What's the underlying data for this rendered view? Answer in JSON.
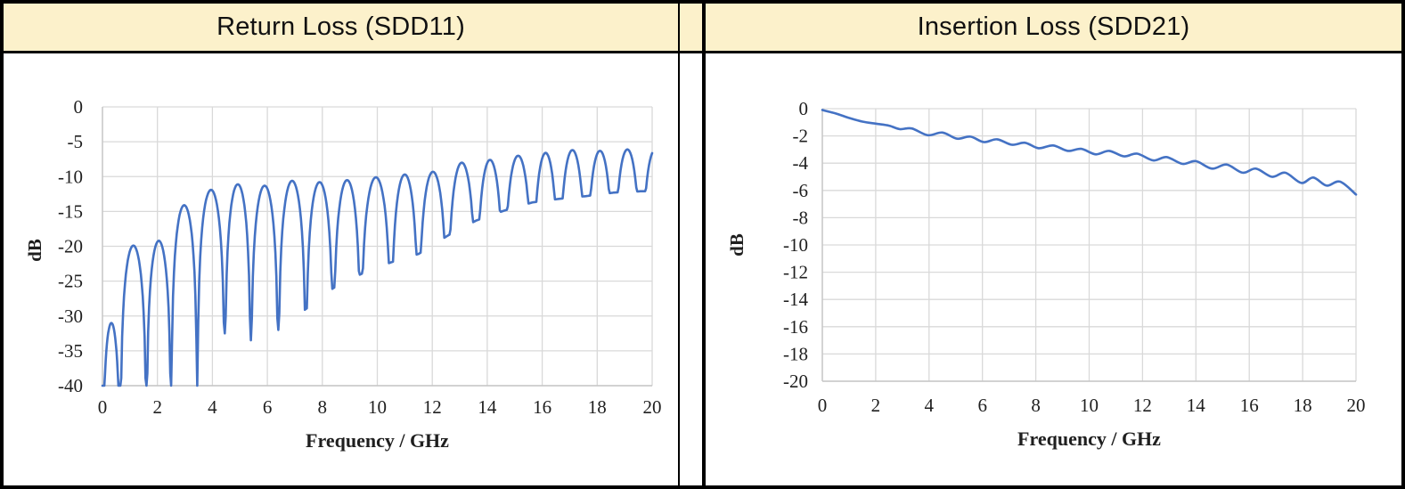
{
  "headers": {
    "left": "Return Loss (SDD11)",
    "right": "Insertion Loss (SDD21)"
  },
  "colors": {
    "line": "#4472C4",
    "grid": "#D9D9D9",
    "axis": "#C6C6C6",
    "header_bg": "#FCF1CB",
    "border": "#000000",
    "text": "#1F1F1F"
  },
  "chart_data": [
    {
      "type": "line",
      "title": "Return Loss (SDD11)",
      "xlabel": "Frequency / GHz",
      "ylabel": "dB",
      "xlim": [
        0,
        20
      ],
      "ylim": [
        -40,
        0
      ],
      "x_ticks": [
        0,
        2,
        4,
        6,
        8,
        10,
        12,
        14,
        16,
        18,
        20
      ],
      "y_ticks": [
        0,
        -5,
        -10,
        -15,
        -20,
        -25,
        -30,
        -35,
        -40
      ],
      "grid": true,
      "legend": "none",
      "series_form": "lobed",
      "lobe_peaks": [
        [
          0.3,
          -31
        ],
        [
          1.15,
          -19.9
        ],
        [
          2.05,
          -19.2
        ],
        [
          2.95,
          -14.1
        ],
        [
          3.95,
          -11.9
        ],
        [
          4.9,
          -11.1
        ],
        [
          5.9,
          -11.3
        ],
        [
          6.9,
          -10.6
        ],
        [
          7.9,
          -10.8
        ],
        [
          8.9,
          -10.5
        ],
        [
          9.95,
          -10.1
        ],
        [
          11.0,
          -9.7
        ],
        [
          12.0,
          -9.3
        ],
        [
          13.05,
          -8.0
        ],
        [
          14.05,
          -7.6
        ],
        [
          15.05,
          -7.0
        ],
        [
          16.05,
          -6.6
        ],
        [
          17.1,
          -6.2
        ],
        [
          18.1,
          -6.3
        ],
        [
          19.1,
          -6.1
        ],
        [
          20.1,
          -6.2
        ]
      ],
      "lobe_nulls": [
        [
          0,
          -45
        ],
        [
          0.65,
          -45
        ],
        [
          1.6,
          -45
        ],
        [
          2.5,
          -45
        ],
        [
          3.45,
          -45
        ],
        [
          4.45,
          -32.5
        ],
        [
          5.4,
          -33.5
        ],
        [
          6.4,
          -32
        ],
        [
          7.4,
          -29
        ],
        [
          8.4,
          -26
        ],
        [
          9.4,
          -24
        ],
        [
          10.5,
          -22.3
        ],
        [
          11.5,
          -21.1
        ],
        [
          12.55,
          -18.5
        ],
        [
          13.6,
          -16.3
        ],
        [
          14.6,
          -14.9
        ],
        [
          15.65,
          -13.7
        ],
        [
          16.6,
          -13.2
        ],
        [
          17.6,
          -12.8
        ],
        [
          18.6,
          -12.3
        ],
        [
          19.6,
          -12.1
        ]
      ]
    },
    {
      "type": "line",
      "title": "Insertion Loss (SDD21)",
      "xlabel": "Frequency / GHz",
      "ylabel": "dB",
      "xlim": [
        0,
        20
      ],
      "ylim": [
        -20,
        0
      ],
      "x_ticks": [
        0,
        2,
        4,
        6,
        8,
        10,
        12,
        14,
        16,
        18,
        20
      ],
      "y_ticks": [
        0,
        -2,
        -4,
        -6,
        -8,
        -10,
        -12,
        -14,
        -16,
        -18,
        -20
      ],
      "grid": true,
      "legend": "none",
      "series_form": "points",
      "points": [
        [
          0,
          -0.1
        ],
        [
          0.5,
          -0.35
        ],
        [
          1,
          -0.68
        ],
        [
          1.5,
          -0.95
        ],
        [
          2,
          -1.1
        ],
        [
          2.5,
          -1.25
        ],
        [
          2.9,
          -1.5
        ],
        [
          3.35,
          -1.45
        ],
        [
          3.95,
          -1.95
        ],
        [
          4.5,
          -1.75
        ],
        [
          5.05,
          -2.2
        ],
        [
          5.55,
          -2.05
        ],
        [
          6.05,
          -2.45
        ],
        [
          6.55,
          -2.25
        ],
        [
          7.1,
          -2.65
        ],
        [
          7.6,
          -2.5
        ],
        [
          8.1,
          -2.9
        ],
        [
          8.65,
          -2.7
        ],
        [
          9.2,
          -3.1
        ],
        [
          9.7,
          -2.95
        ],
        [
          10.25,
          -3.35
        ],
        [
          10.75,
          -3.1
        ],
        [
          11.3,
          -3.5
        ],
        [
          11.8,
          -3.3
        ],
        [
          12.4,
          -3.8
        ],
        [
          12.9,
          -3.55
        ],
        [
          13.5,
          -4.05
        ],
        [
          14,
          -3.85
        ],
        [
          14.6,
          -4.4
        ],
        [
          15.15,
          -4.1
        ],
        [
          15.75,
          -4.7
        ],
        [
          16.25,
          -4.4
        ],
        [
          16.85,
          -5.0
        ],
        [
          17.35,
          -4.7
        ],
        [
          17.95,
          -5.45
        ],
        [
          18.4,
          -5.05
        ],
        [
          18.9,
          -5.65
        ],
        [
          19.4,
          -5.35
        ],
        [
          20,
          -6.3
        ]
      ]
    }
  ]
}
